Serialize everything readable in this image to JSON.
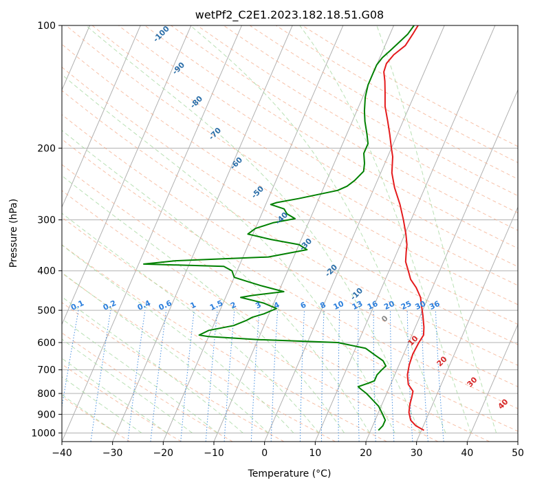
{
  "chart_data": {
    "type": "line",
    "title": "wetPf2_C2E1.2023.182.18.51.G08",
    "xlabel": "Temperature (°C)",
    "ylabel": "Pressure (hPa)",
    "xlim": [
      -40,
      50
    ],
    "ylim": [
      1050,
      100
    ],
    "y_scale": "log",
    "x_ticks": [
      -40,
      -30,
      -20,
      -10,
      0,
      10,
      20,
      30,
      40,
      50
    ],
    "y_ticks": [
      100,
      200,
      300,
      400,
      500,
      600,
      700,
      800,
      900,
      1000
    ],
    "grid": true,
    "series": [
      {
        "color": "#e41a1c",
        "points": [
          [
            30.5,
            985
          ],
          [
            28.5,
            960
          ],
          [
            27,
            930
          ],
          [
            26,
            890
          ],
          [
            25.5,
            850
          ],
          [
            25.3,
            820
          ],
          [
            25,
            790
          ],
          [
            23.5,
            760
          ],
          [
            22.5,
            720
          ],
          [
            22,
            680
          ],
          [
            21.8,
            640
          ],
          [
            22,
            600
          ],
          [
            22.3,
            575
          ],
          [
            21.7,
            550
          ],
          [
            20.5,
            515
          ],
          [
            19.5,
            490
          ],
          [
            18.5,
            465
          ],
          [
            16.8,
            440
          ],
          [
            15,
            420
          ],
          [
            13.8,
            400
          ],
          [
            12.5,
            380
          ],
          [
            11.8,
            360
          ],
          [
            11.3,
            345
          ],
          [
            10.2,
            325
          ],
          [
            8.5,
            300
          ],
          [
            6.5,
            275
          ],
          [
            4,
            250
          ],
          [
            2.2,
            230
          ],
          [
            1,
            210
          ],
          [
            0,
            200
          ],
          [
            -1.5,
            185
          ],
          [
            -3,
            172
          ],
          [
            -4.8,
            158
          ],
          [
            -6,
            146
          ],
          [
            -7,
            137
          ],
          [
            -8,
            130
          ],
          [
            -8.2,
            124
          ],
          [
            -7.5,
            118
          ],
          [
            -6,
            112
          ],
          [
            -5.5,
            105
          ],
          [
            -5.2,
            100
          ]
        ]
      },
      {
        "color": "#008000",
        "points": [
          [
            21.5,
            985
          ],
          [
            22,
            960
          ],
          [
            22,
            930
          ],
          [
            20.8,
            895
          ],
          [
            19.5,
            860
          ],
          [
            17.8,
            830
          ],
          [
            16,
            800
          ],
          [
            14.5,
            780
          ],
          [
            13.8,
            770
          ],
          [
            15.5,
            755
          ],
          [
            16.5,
            745
          ],
          [
            16.5,
            720
          ],
          [
            17,
            700
          ],
          [
            17.5,
            685
          ],
          [
            16.5,
            665
          ],
          [
            14.5,
            645
          ],
          [
            12,
            620
          ],
          [
            6,
            600
          ],
          [
            -10,
            590
          ],
          [
            -20,
            580
          ],
          [
            -22,
            575
          ],
          [
            -20.5,
            560
          ],
          [
            -16,
            545
          ],
          [
            -14,
            530
          ],
          [
            -13,
            520
          ],
          [
            -11,
            510
          ],
          [
            -9,
            495
          ],
          [
            -12,
            480
          ],
          [
            -17,
            465
          ],
          [
            -15,
            460
          ],
          [
            -9,
            450
          ],
          [
            -14,
            435
          ],
          [
            -17,
            425
          ],
          [
            -20,
            415
          ],
          [
            -21,
            400
          ],
          [
            -23,
            390
          ],
          [
            -39,
            385
          ],
          [
            -33,
            378
          ],
          [
            -15,
            370
          ],
          [
            -8,
            355
          ],
          [
            -10,
            345
          ],
          [
            -16,
            335
          ],
          [
            -21,
            325
          ],
          [
            -20,
            315
          ],
          [
            -17,
            305
          ],
          [
            -13,
            298
          ],
          [
            -15,
            290
          ],
          [
            -16,
            282
          ],
          [
            -19,
            275
          ],
          [
            -18,
            272
          ],
          [
            -14,
            266
          ],
          [
            -7,
            254
          ],
          [
            -5.5,
            248
          ],
          [
            -4.5,
            240
          ],
          [
            -3.5,
            228
          ],
          [
            -4,
            218
          ],
          [
            -5,
            206
          ],
          [
            -5,
            195
          ],
          [
            -6,
            185
          ],
          [
            -7.5,
            172
          ],
          [
            -8.5,
            162
          ],
          [
            -9.5,
            150
          ],
          [
            -10,
            140
          ],
          [
            -10,
            132
          ],
          [
            -10,
            125
          ],
          [
            -9.5,
            120
          ],
          [
            -8.5,
            115
          ],
          [
            -7.5,
            110
          ],
          [
            -6.5,
            105
          ],
          [
            -6,
            100
          ]
        ]
      }
    ],
    "mixing_ratio_labels": [
      "0.1",
      "0.2",
      "0.4",
      "0.6",
      "1",
      "1.5",
      "2",
      "3",
      "4",
      "6",
      "8",
      "10",
      "13",
      "16",
      "20",
      "25",
      "30",
      "36"
    ],
    "dry_adiabat_labels": [
      "-100",
      "-90",
      "-80",
      "-70",
      "-60",
      "-50",
      "-40",
      "-30",
      "-20",
      "-10"
    ],
    "moist_adiabat_labels": [
      "0",
      "10",
      "20",
      "30",
      "40"
    ]
  }
}
